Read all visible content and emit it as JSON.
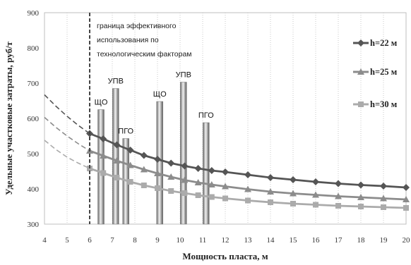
{
  "chart_data": {
    "type": "line",
    "xlabel": "Мощность пласта, м",
    "ylabel": "Удельные участковые затраты, руб/т",
    "xlim": [
      4,
      20
    ],
    "ylim": [
      300,
      900
    ],
    "x_ticks": [
      4,
      5,
      6,
      7,
      8,
      9,
      10,
      11,
      12,
      13,
      14,
      15,
      16,
      17,
      18,
      19,
      20
    ],
    "y_ticks": [
      300,
      400,
      500,
      600,
      700,
      800,
      900
    ],
    "grid": "vertical-dotted",
    "legend_position": "right",
    "series": [
      {
        "name": "h=22 м",
        "color": "#555555",
        "dashed_x": [
          4,
          4.5,
          5,
          5.5,
          6
        ],
        "dashed_y": [
          667,
          635,
          606,
          580,
          557
        ],
        "x": [
          6,
          6.6,
          7.2,
          7.8,
          8.4,
          9,
          9.6,
          10.2,
          10.8,
          11.4,
          12,
          13,
          14,
          15,
          16,
          17,
          18,
          19,
          20
        ],
        "y": [
          557,
          542,
          525,
          510,
          495,
          484,
          473,
          465,
          458,
          452,
          448,
          440,
          432,
          426,
          420,
          415,
          411,
          408,
          404
        ]
      },
      {
        "name": "h=25 м",
        "color": "#8c8c8c",
        "dashed_x": [
          4,
          4.5,
          5,
          5.5,
          6
        ],
        "dashed_y": [
          603,
          575,
          550,
          528,
          508
        ],
        "x": [
          6,
          6.6,
          7.2,
          7.8,
          8.4,
          9,
          9.6,
          10.2,
          10.8,
          11.4,
          12,
          13,
          14,
          15,
          16,
          17,
          18,
          19,
          20
        ],
        "y": [
          508,
          494,
          480,
          467,
          455,
          444,
          434,
          425,
          418,
          412,
          407,
          399,
          392,
          387,
          383,
          379,
          376,
          373,
          370
        ]
      },
      {
        "name": "h=30 м",
        "color": "#ababab",
        "dashed_x": [
          4,
          4.5,
          5,
          5.5,
          6
        ],
        "dashed_y": [
          538,
          512,
          490,
          473,
          458
        ],
        "x": [
          6,
          6.6,
          7.2,
          7.8,
          8.4,
          9,
          9.6,
          10.2,
          10.8,
          11.4,
          12,
          13,
          14,
          15,
          16,
          17,
          18,
          19,
          20
        ],
        "y": [
          458,
          445,
          432,
          420,
          410,
          402,
          394,
          388,
          382,
          377,
          373,
          367,
          362,
          358,
          355,
          352,
          350,
          348,
          346
        ]
      }
    ],
    "boundary": {
      "x": 6,
      "label_lines": [
        "граница эффективного",
        "использования по",
        "технологическим факторам"
      ]
    },
    "columns": [
      {
        "label": "ЩО",
        "x": 6.5,
        "top": 625
      },
      {
        "label": "УПВ",
        "x": 7.15,
        "top": 685
      },
      {
        "label": "ПГО",
        "x": 7.6,
        "top": 543
      },
      {
        "label": "ЩО",
        "x": 9.1,
        "top": 648
      },
      {
        "label": "УПВ",
        "x": 10.15,
        "top": 703
      },
      {
        "label": "ПГО",
        "x": 11.15,
        "top": 588
      }
    ]
  }
}
